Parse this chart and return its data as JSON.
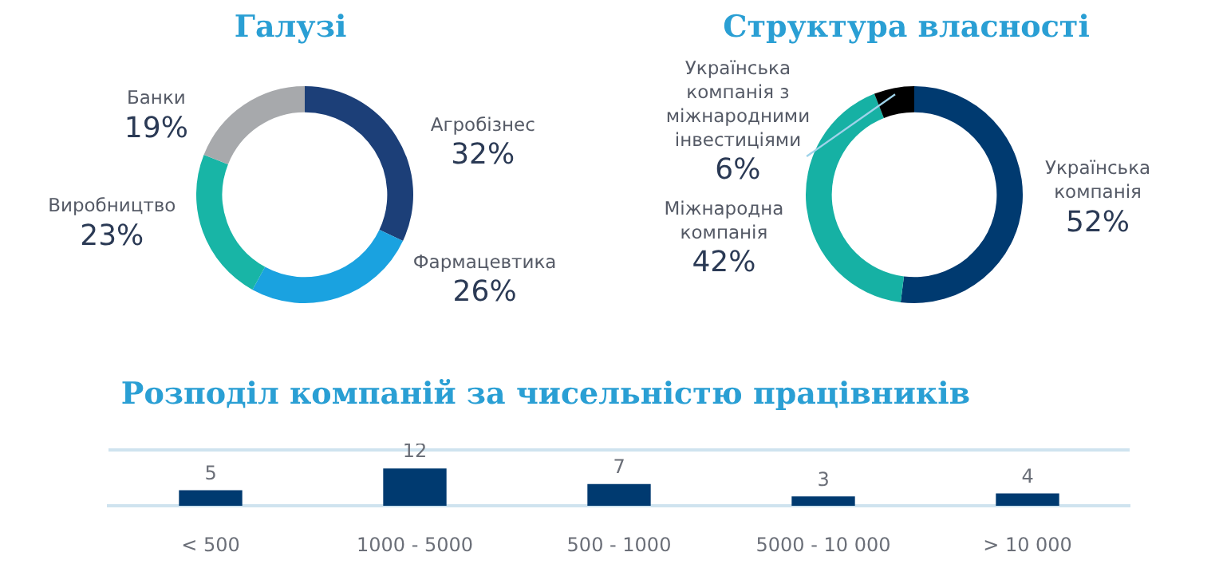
{
  "chart_data": [
    {
      "type": "donut",
      "title": "Галузі",
      "categories": [
        "Агробізнес",
        "Фармацевтика",
        "Виробництво",
        "Банки"
      ],
      "values": [
        32,
        26,
        23,
        19
      ],
      "colors": [
        "#1c3f78",
        "#1aa2e0",
        "#18b5a6",
        "#a7a9ac"
      ],
      "value_labels": [
        "32%",
        "26%",
        "23%",
        "19%"
      ]
    },
    {
      "type": "donut",
      "title": "Структура власності",
      "categories": [
        "Українська компанія",
        "Міжнародна компанія",
        "Українська компанія з міжнародними інвестиціями"
      ],
      "values": [
        52,
        42,
        6
      ],
      "colors": [
        "#003a70",
        "#16b1a4",
        "#000000"
      ],
      "value_labels": [
        "52%",
        "42%",
        "6%"
      ]
    },
    {
      "type": "bar",
      "title": "Розподіл компаній за чисельністю працівників",
      "categories": [
        "< 500",
        "1000 - 5000",
        "500 - 1000",
        "5000 - 10 000",
        "> 10 000"
      ],
      "values": [
        5,
        12,
        7,
        3,
        4
      ],
      "color": "#003a70",
      "data_labels": true
    }
  ]
}
